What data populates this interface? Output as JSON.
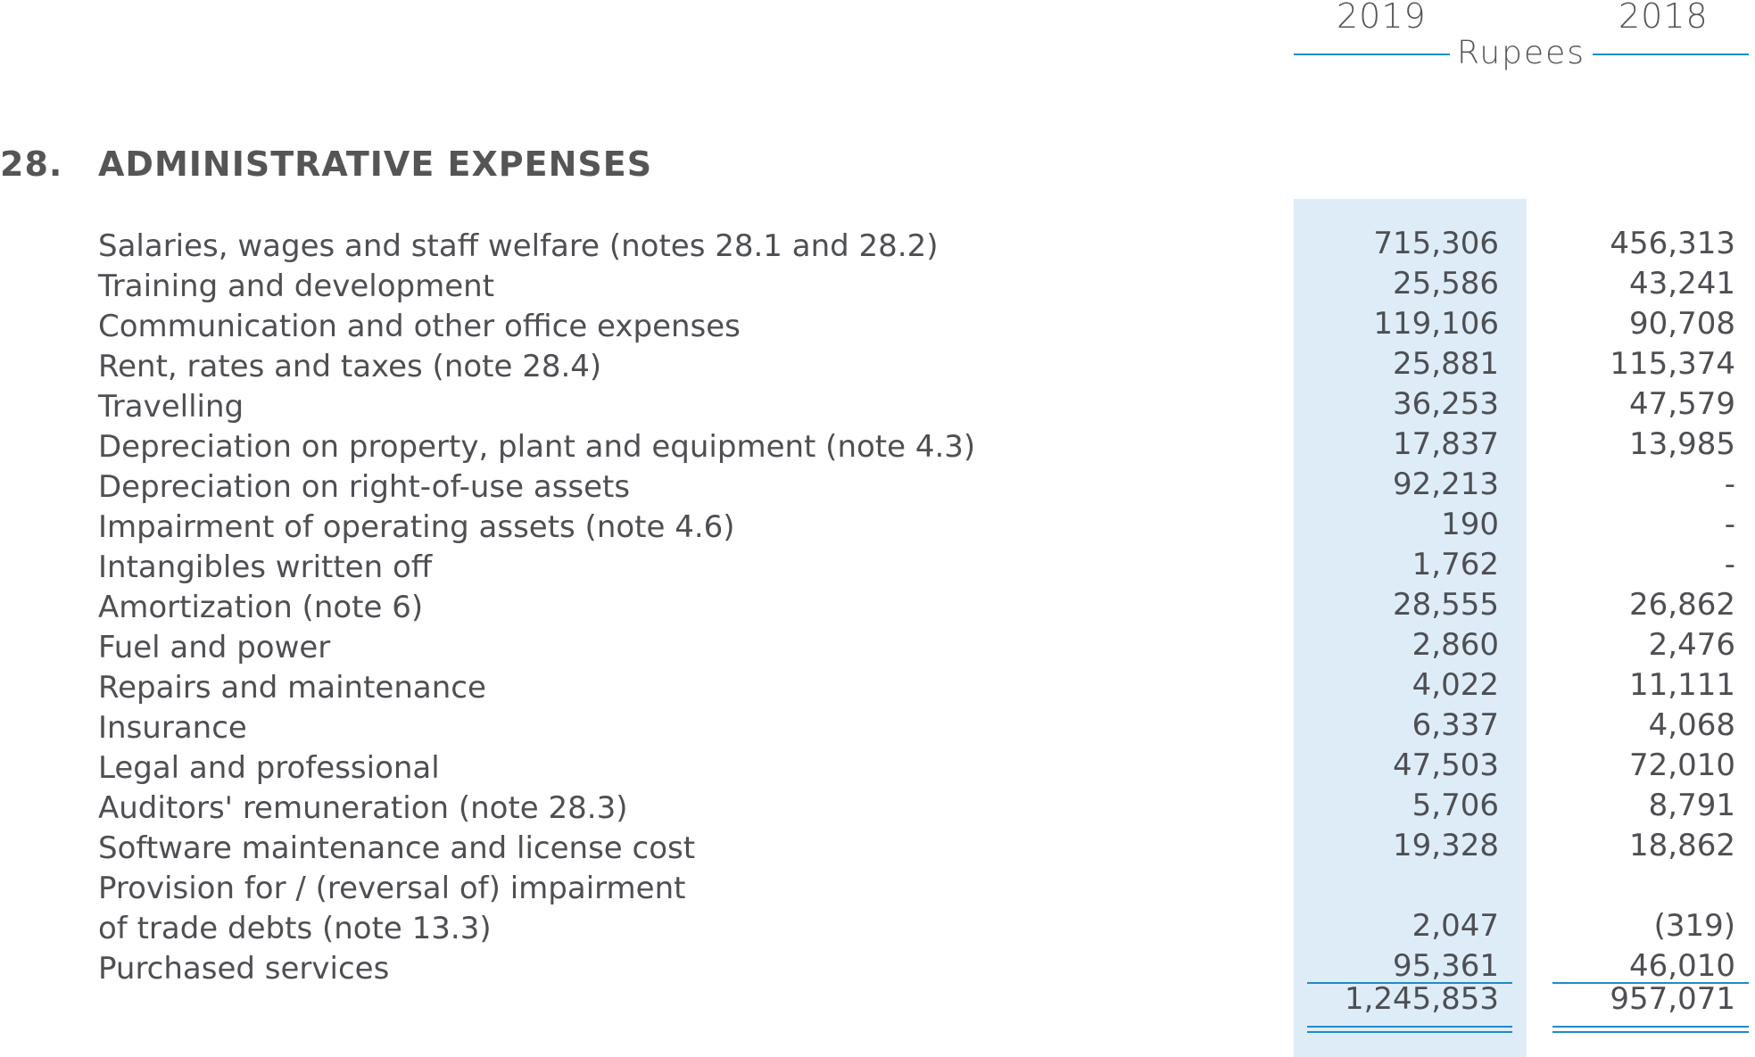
{
  "header": {
    "year_current": "2019",
    "year_prior": "2018",
    "currency": "Rupees"
  },
  "section": {
    "number": "28.",
    "title": "ADMINISTRATIVE EXPENSES"
  },
  "rows": [
    {
      "label": "Salaries, wages and staff welfare (notes 28.1 and 28.2)",
      "v2019": "715,306",
      "v2018": "456,313"
    },
    {
      "label": "Training and development",
      "v2019": "25,586",
      "v2018": "43,241"
    },
    {
      "label": "Communication and other office expenses",
      "v2019": "119,106",
      "v2018": "90,708"
    },
    {
      "label": "Rent, rates and taxes (note 28.4)",
      "v2019": "25,881",
      "v2018": "115,374"
    },
    {
      "label": "Travelling",
      "v2019": "36,253",
      "v2018": "47,579"
    },
    {
      "label": "Depreciation on property, plant and equipment (note 4.3)",
      "v2019": "17,837",
      "v2018": "13,985"
    },
    {
      "label": "Depreciation on right-of-use assets",
      "v2019": "92,213",
      "v2018": "-"
    },
    {
      "label": "Impairment of operating assets (note 4.6)",
      "v2019": "190",
      "v2018": "-"
    },
    {
      "label": "Intangibles written off",
      "v2019": "1,762",
      "v2018": "-"
    },
    {
      "label": "Amortization (note 6)",
      "v2019": "28,555",
      "v2018": "26,862"
    },
    {
      "label": "Fuel and power",
      "v2019": "2,860",
      "v2018": "2,476"
    },
    {
      "label": "Repairs and maintenance",
      "v2019": "4,022",
      "v2018": "11,111"
    },
    {
      "label": "Insurance",
      "v2019": "6,337",
      "v2018": "4,068"
    },
    {
      "label": "Legal and professional",
      "v2019": "47,503",
      "v2018": "72,010"
    },
    {
      "label": "Auditors' remuneration (note 28.3)",
      "v2019": "5,706",
      "v2018": "8,791"
    },
    {
      "label": "Software maintenance and license cost",
      "v2019": "19,328",
      "v2018": "18,862"
    },
    {
      "label_line1": "Provision for / (reversal of) impairment",
      "label_line2": "of trade debts (note 13.3)",
      "v2019": "2,047",
      "v2018": "(319)"
    },
    {
      "label": "Purchased services",
      "v2019": "95,361",
      "v2018": "46,010"
    }
  ],
  "totals": {
    "v2019": "1,245,853",
    "v2018": "957,071"
  }
}
